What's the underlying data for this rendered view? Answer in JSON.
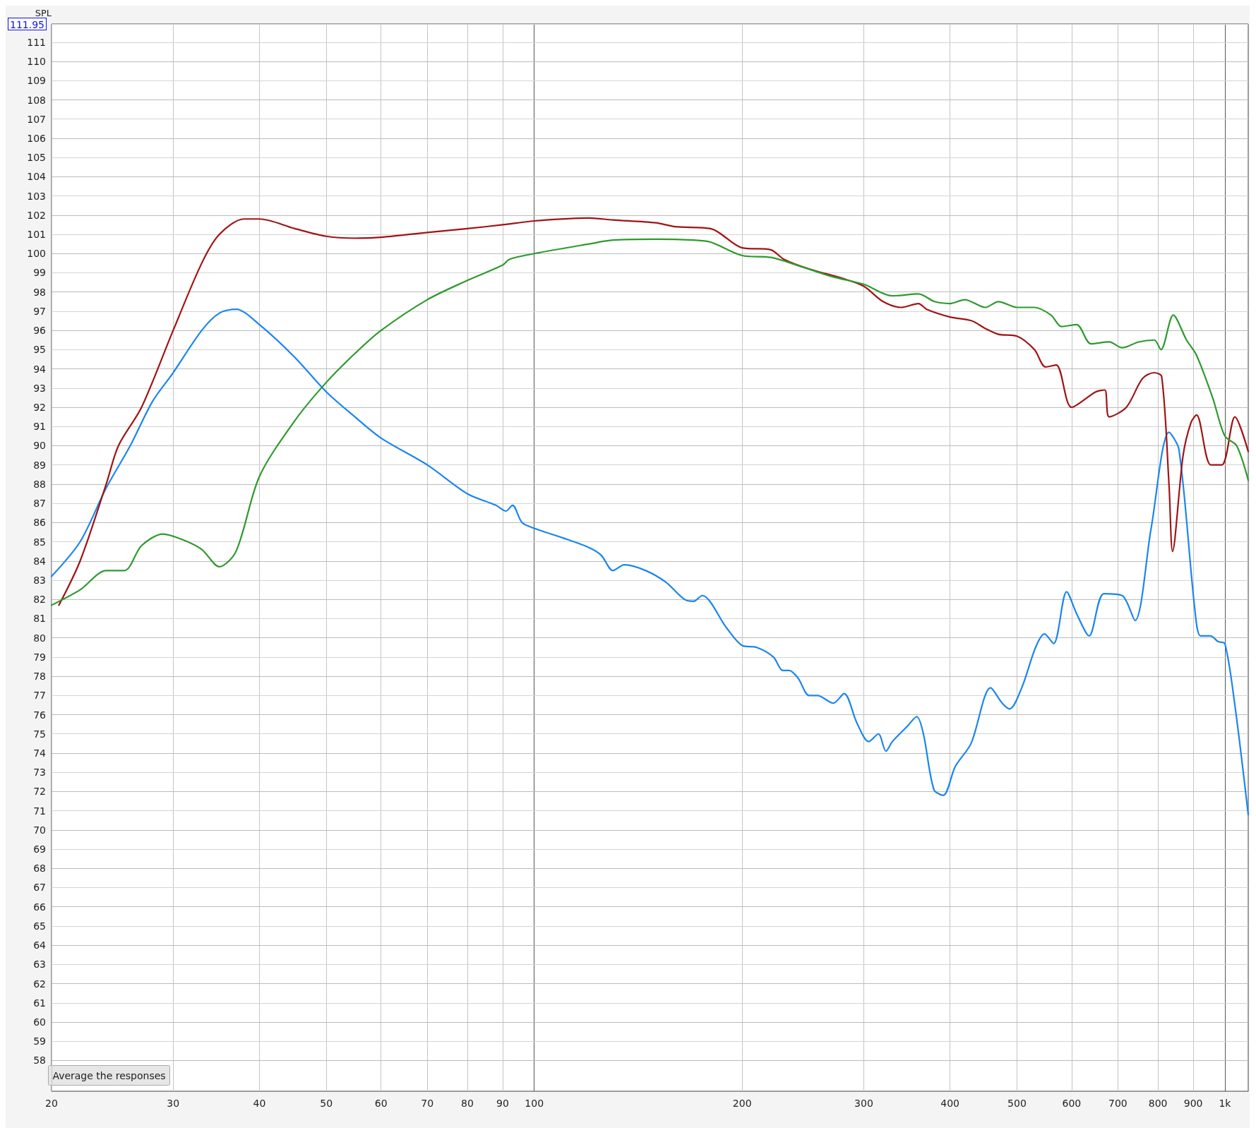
{
  "chart_data": {
    "type": "line",
    "ylabel": "SPL",
    "log": "x",
    "grid": true,
    "marker": "none",
    "line_style": "solid",
    "xlim": [
      20,
      1081
    ],
    "ylim": [
      56.4,
      111.95
    ],
    "xticks": [
      20,
      30,
      40,
      50,
      60,
      70,
      80,
      90,
      100,
      200,
      300,
      400,
      500,
      600,
      700,
      800,
      900,
      {
        "value": 1000,
        "label": "1k"
      }
    ],
    "yticks": [
      58,
      59,
      60,
      61,
      62,
      63,
      64,
      65,
      66,
      67,
      68,
      69,
      70,
      71,
      72,
      73,
      74,
      75,
      76,
      77,
      78,
      79,
      80,
      81,
      82,
      83,
      84,
      85,
      86,
      87,
      88,
      89,
      90,
      91,
      92,
      93,
      94,
      95,
      96,
      97,
      98,
      99,
      100,
      101,
      102,
      103,
      104,
      105,
      106,
      107,
      108,
      109,
      110,
      111,
      111.95
    ],
    "annotations": [
      "Average the responses"
    ],
    "series": [
      {
        "color": "#1a86f0",
        "x": [
          20,
          22,
          24,
          26,
          28,
          30,
          33,
          35,
          37,
          40,
          45,
          50,
          55,
          60,
          70,
          80,
          88,
          91,
          93,
          96,
          100,
          110,
          120,
          125,
          130,
          135,
          145,
          155,
          165,
          170,
          175,
          190,
          200,
          210,
          222,
          229,
          234,
          241,
          250,
          257,
          271,
          281,
          293,
          305,
          315,
          323,
          330,
          347,
          358,
          366,
          379,
          391,
          407,
          429,
          458,
          476,
          488,
          508,
          532,
          548,
          565,
          590,
          611,
          636,
          668,
          710,
          741,
          782,
          830,
          858,
          904,
          922,
          953,
          978,
          1000,
          1033,
          1081
        ],
        "values": [
          83.2,
          85,
          87.8,
          90,
          92.3,
          93.8,
          96,
          96.9,
          97.1,
          96.3,
          94.6,
          92.8,
          91.5,
          90.4,
          89,
          87.5,
          86.9,
          86.6,
          86.9,
          86,
          85.7,
          85.2,
          84.7,
          84.3,
          83.5,
          83.8,
          83.5,
          82.9,
          82,
          81.9,
          82.2,
          80.5,
          79.6,
          79.5,
          79,
          78.3,
          78.3,
          77.9,
          77,
          77,
          76.6,
          77.1,
          75.6,
          74.6,
          75,
          74.1,
          74.6,
          75.4,
          75.9,
          75,
          72.1,
          71.8,
          73.3,
          74.5,
          77.4,
          76.6,
          76.3,
          77.4,
          79.5,
          80.2,
          79.7,
          82.4,
          81.2,
          80.1,
          82.3,
          82.2,
          80.9,
          85.7,
          90.7,
          89.8,
          81.6,
          80.1,
          80.1,
          79.8,
          79.7,
          76.6,
          70.8
        ]
      },
      {
        "color": "#a01414",
        "x": [
          20.5,
          22,
          24,
          25,
          27,
          30,
          33,
          35,
          38,
          40,
          45,
          50,
          55,
          60,
          70,
          80,
          90,
          100,
          120,
          130,
          150,
          160,
          180,
          200,
          220,
          230,
          250,
          280,
          300,
          320,
          340,
          360,
          370,
          400,
          430,
          450,
          470,
          500,
          530,
          550,
          570,
          600,
          650,
          670,
          680,
          720,
          760,
          790,
          810,
          830,
          840,
          870,
          893,
          910,
          954,
          990,
          1034,
          1081
        ],
        "values": [
          81.7,
          84,
          88,
          90,
          92,
          96,
          99.5,
          101,
          101.8,
          101.8,
          101.3,
          100.9,
          100.8,
          100.85,
          101.1,
          101.3,
          101.5,
          101.7,
          101.85,
          101.75,
          101.6,
          101.4,
          101.3,
          100.3,
          100.2,
          99.7,
          99.2,
          98.7,
          98.3,
          97.5,
          97.2,
          97.4,
          97.1,
          96.7,
          96.5,
          96.1,
          95.8,
          95.7,
          95,
          94.1,
          94.2,
          92,
          92.8,
          92.9,
          91.5,
          92,
          93.5,
          93.8,
          93.6,
          88,
          84.5,
          89.5,
          91.2,
          91.6,
          89,
          89,
          91.5,
          89.7
        ]
      },
      {
        "color": "#2e9a2e",
        "x": [
          20,
          22,
          24,
          25.5,
          27,
          29,
          31,
          33,
          35,
          37,
          40,
          45,
          50,
          55,
          60,
          70,
          80,
          90,
          92,
          100,
          120,
          130,
          150,
          170,
          180,
          200,
          220,
          240,
          270,
          300,
          330,
          360,
          380,
          400,
          420,
          450,
          470,
          500,
          530,
          560,
          580,
          610,
          640,
          680,
          710,
          750,
          790,
          808,
          842,
          880,
          910,
          960,
          1000,
          1040,
          1081
        ],
        "values": [
          81.7,
          82.5,
          83.5,
          83.5,
          84.8,
          85.4,
          85.1,
          84.6,
          83.7,
          84.5,
          88.4,
          91.3,
          93.3,
          94.8,
          96,
          97.6,
          98.6,
          99.4,
          99.7,
          100,
          100.5,
          100.7,
          100.75,
          100.7,
          100.6,
          99.9,
          99.8,
          99.4,
          98.8,
          98.4,
          97.8,
          97.9,
          97.5,
          97.4,
          97.6,
          97.2,
          97.5,
          97.2,
          97.2,
          96.8,
          96.2,
          96.3,
          95.3,
          95.4,
          95.1,
          95.4,
          95.5,
          95,
          96.8,
          95.5,
          94.7,
          92.5,
          90.5,
          90,
          88.2
        ]
      }
    ]
  }
}
